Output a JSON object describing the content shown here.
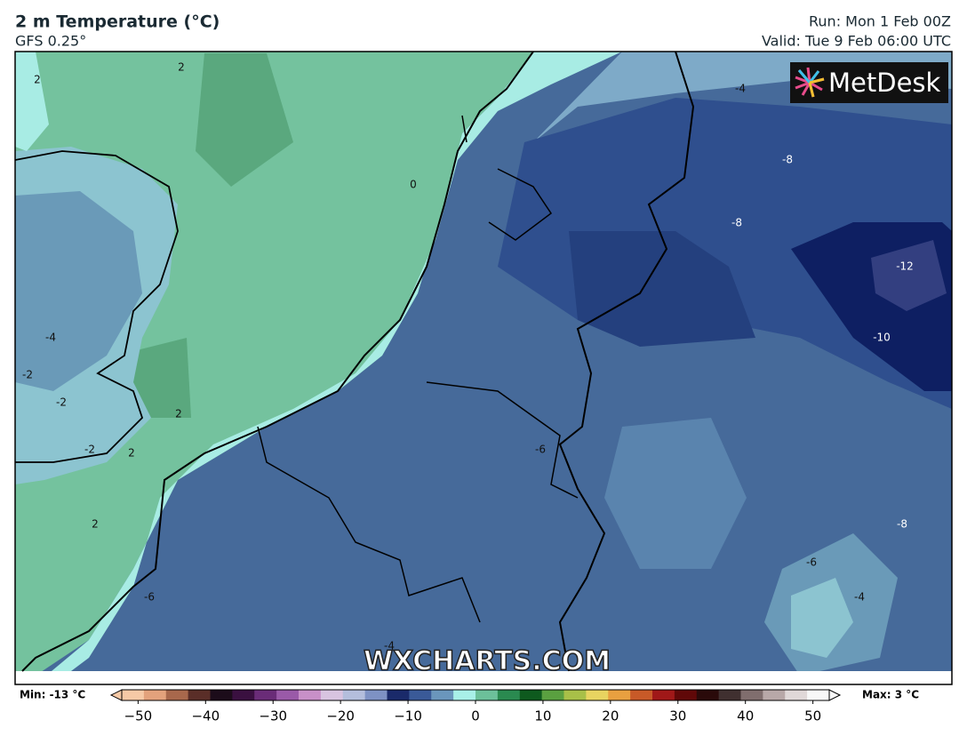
{
  "header": {
    "title": "2 m Temperature (°C)",
    "subtitle": "GFS 0.25°",
    "run": "Run: Mon 1 Feb 00Z",
    "valid": "Valid: Tue 9 Feb 06:00 UTC"
  },
  "logo": "MetDesk",
  "watermark": "WXCHARTS.COM",
  "contour_labels": [
    "2",
    "2",
    "-4",
    "-8",
    "0",
    "-8",
    "-12",
    "-4",
    "-10",
    "-2",
    "-2",
    "2",
    "-2",
    "2",
    "-6",
    "2",
    "-8",
    "-6",
    "-6",
    "-4",
    "-4"
  ],
  "colorbar": {
    "min_label": "Min: -13 °C",
    "max_label": "Max: 3 °C",
    "range": [
      -54,
      54
    ],
    "ticks": [
      {
        "value": -50,
        "label": "−50"
      },
      {
        "value": -40,
        "label": "−40"
      },
      {
        "value": -30,
        "label": "−30"
      },
      {
        "value": -20,
        "label": "−20"
      },
      {
        "value": -10,
        "label": "−10"
      },
      0,
      10,
      20,
      30,
      40,
      50
    ],
    "colors": [
      "#f6c9a6",
      "#e3a27c",
      "#a8684c",
      "#5a2e28",
      "#1c0c1a",
      "#3a1040",
      "#6a2c78",
      "#9a5aa8",
      "#c890c8",
      "#d8c4e0",
      "#b4bedc",
      "#7e92c4",
      "#1a2a6a",
      "#3a5a98",
      "#6a96bc",
      "#a8f0e8",
      "#6cc09a",
      "#2a8a50",
      "#0e5a1e",
      "#5aa040",
      "#a8c048",
      "#e8d460",
      "#e8a040",
      "#c85a28",
      "#a01818",
      "#600808",
      "#2a0a0a",
      "#403030",
      "#806e6e",
      "#b8a8a8",
      "#e0d8d8",
      "#f8f8f8"
    ]
  }
}
